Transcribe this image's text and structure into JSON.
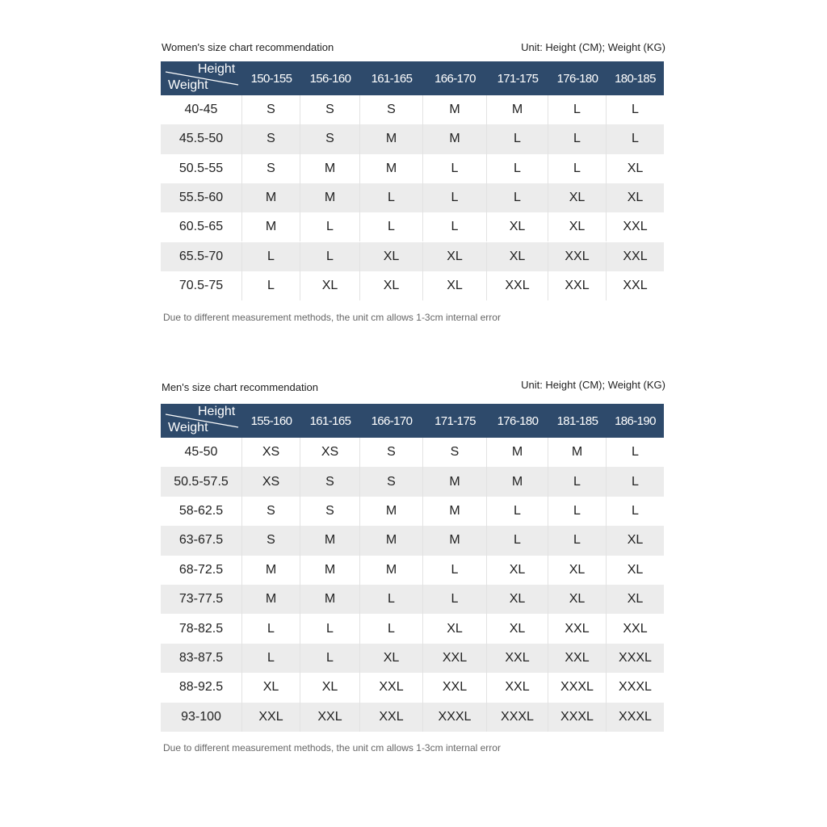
{
  "tables": [
    {
      "title": "Women's size chart recommendation",
      "unit": "Unit: Height (CM); Weight (KG)",
      "corner": {
        "top": "Height",
        "bottom": "Weight"
      },
      "columns": [
        "150-155",
        "156-160",
        "161-165",
        "166-170",
        "171-175",
        "176-180",
        "180-185"
      ],
      "rows": [
        {
          "label": "40-45",
          "cells": [
            "S",
            "S",
            "S",
            "M",
            "M",
            "L",
            "L"
          ]
        },
        {
          "label": "45.5-50",
          "cells": [
            "S",
            "S",
            "M",
            "M",
            "L",
            "L",
            "L"
          ]
        },
        {
          "label": "50.5-55",
          "cells": [
            "S",
            "M",
            "M",
            "L",
            "L",
            "L",
            "XL"
          ]
        },
        {
          "label": "55.5-60",
          "cells": [
            "M",
            "M",
            "L",
            "L",
            "L",
            "XL",
            "XL"
          ]
        },
        {
          "label": "60.5-65",
          "cells": [
            "M",
            "L",
            "L",
            "L",
            "XL",
            "XL",
            "XXL"
          ]
        },
        {
          "label": "65.5-70",
          "cells": [
            "L",
            "L",
            "XL",
            "XL",
            "XL",
            "XXL",
            "XXL"
          ]
        },
        {
          "label": "70.5-75",
          "cells": [
            "L",
            "XL",
            "XL",
            "XL",
            "XXL",
            "XXL",
            "XXL"
          ]
        }
      ],
      "note": "Due to different measurement methods, the unit cm allows 1-3cm internal error"
    },
    {
      "title": "Men's size chart recommendation",
      "unit": "Unit: Height (CM); Weight (KG)",
      "corner": {
        "top": "Height",
        "bottom": "Weight"
      },
      "columns": [
        "155-160",
        "161-165",
        "166-170",
        "171-175",
        "176-180",
        "181-185",
        "186-190"
      ],
      "rows": [
        {
          "label": "45-50",
          "cells": [
            "XS",
            "XS",
            "S",
            "S",
            "M",
            "M",
            "L"
          ]
        },
        {
          "label": "50.5-57.5",
          "cells": [
            "XS",
            "S",
            "S",
            "M",
            "M",
            "L",
            "L"
          ]
        },
        {
          "label": "58-62.5",
          "cells": [
            "S",
            "S",
            "M",
            "M",
            "L",
            "L",
            "L"
          ]
        },
        {
          "label": "63-67.5",
          "cells": [
            "S",
            "M",
            "M",
            "M",
            "L",
            "L",
            "XL"
          ]
        },
        {
          "label": "68-72.5",
          "cells": [
            "M",
            "M",
            "M",
            "L",
            "XL",
            "XL",
            "XL"
          ]
        },
        {
          "label": "73-77.5",
          "cells": [
            "M",
            "M",
            "L",
            "L",
            "XL",
            "XL",
            "XL"
          ]
        },
        {
          "label": "78-82.5",
          "cells": [
            "L",
            "L",
            "L",
            "XL",
            "XL",
            "XXL",
            "XXL"
          ]
        },
        {
          "label": "83-87.5",
          "cells": [
            "L",
            "L",
            "XL",
            "XXL",
            "XXL",
            "XXL",
            "XXXL"
          ]
        },
        {
          "label": "88-92.5",
          "cells": [
            "XL",
            "XL",
            "XXL",
            "XXL",
            "XXL",
            "XXXL",
            "XXXL"
          ]
        },
        {
          "label": "93-100",
          "cells": [
            "XXL",
            "XXL",
            "XXL",
            "XXXL",
            "XXXL",
            "XXXL",
            "XXXL"
          ]
        }
      ],
      "note": "Due to different measurement methods, the unit cm allows 1-3cm internal error"
    }
  ]
}
